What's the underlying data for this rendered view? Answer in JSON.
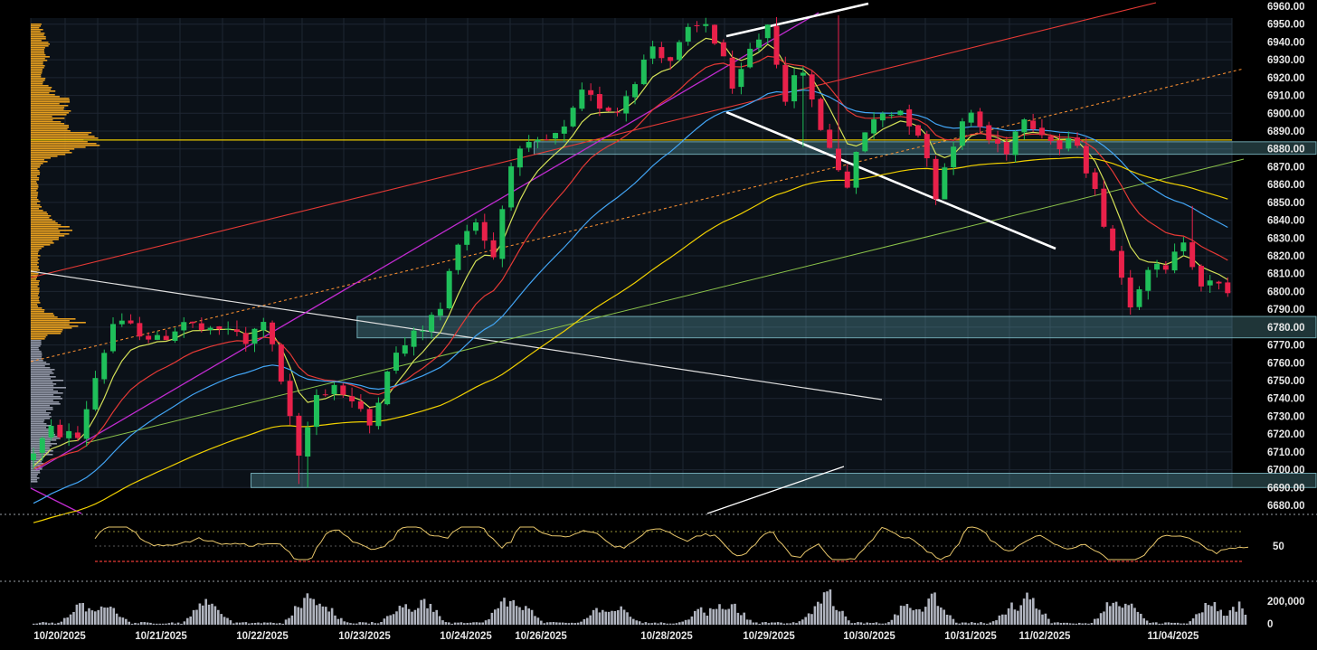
{
  "chart_data": {
    "type": "candlestick",
    "x_labels": [
      "10/20/2025",
      "10/21/2025",
      "10/22/2025",
      "10/23/2025",
      "10/24/2025",
      "10/26/2025",
      "10/28/2025",
      "10/29/2025",
      "10/30/2025",
      "10/31/2025",
      "11/02/2025",
      "11/04/2025"
    ],
    "price_axis": {
      "ticks": [
        "6960.00",
        "6950.00",
        "6940.00",
        "6930.00",
        "6920.00",
        "6910.00",
        "6900.00",
        "6890.00",
        "6880.00",
        "6870.00",
        "6860.00",
        "6850.00",
        "6840.00",
        "6830.00",
        "6820.00",
        "6810.00",
        "6800.00",
        "6790.00",
        "6780.00",
        "6770.00",
        "6760.00",
        "6750.00",
        "6740.00",
        "6730.00",
        "6720.00",
        "6710.00",
        "6700.00",
        "6690.00",
        "6680.00"
      ],
      "ylim": [
        6680,
        6960
      ]
    },
    "rsi_axis": {
      "ticks": [
        "50"
      ],
      "levels": [
        70,
        50,
        30
      ]
    },
    "volume_axis": {
      "ticks": [
        "200,000",
        "0"
      ]
    },
    "price_path": [
      [
        0,
        6705
      ],
      [
        3,
        6722
      ],
      [
        6,
        6718
      ],
      [
        8,
        6752
      ],
      [
        10,
        6782
      ],
      [
        13,
        6778
      ],
      [
        15,
        6772
      ],
      [
        18,
        6783
      ],
      [
        21,
        6776
      ],
      [
        23,
        6780
      ],
      [
        25,
        6770
      ],
      [
        27,
        6785
      ],
      [
        29,
        6750
      ],
      [
        31,
        6705
      ],
      [
        33,
        6742
      ],
      [
        35,
        6748
      ],
      [
        37,
        6738
      ],
      [
        39,
        6725
      ],
      [
        41,
        6758
      ],
      [
        43,
        6770
      ],
      [
        45,
        6780
      ],
      [
        47,
        6790
      ],
      [
        49,
        6830
      ],
      [
        51,
        6840
      ],
      [
        53,
        6820
      ],
      [
        55,
        6874
      ],
      [
        57,
        6880
      ],
      [
        59,
        6884
      ],
      [
        61,
        6890
      ],
      [
        63,
        6910
      ],
      [
        65,
        6905
      ],
      [
        67,
        6902
      ],
      [
        69,
        6920
      ],
      [
        71,
        6938
      ],
      [
        73,
        6930
      ],
      [
        75,
        6945
      ],
      [
        77,
        6950
      ],
      [
        79,
        6932
      ],
      [
        80,
        6910
      ],
      [
        82,
        6935
      ],
      [
        84,
        6950
      ],
      [
        86,
        6910
      ],
      [
        88,
        6925
      ],
      [
        89,
        6905
      ],
      [
        91,
        6880
      ],
      [
        93,
        6860
      ],
      [
        95,
        6890
      ],
      [
        97,
        6900
      ],
      [
        99,
        6902
      ],
      [
        101,
        6890
      ],
      [
        103,
        6855
      ],
      [
        105,
        6885
      ],
      [
        107,
        6900
      ],
      [
        109,
        6885
      ],
      [
        111,
        6880
      ],
      [
        113,
        6900
      ],
      [
        115,
        6890
      ],
      [
        117,
        6880
      ],
      [
        119,
        6885
      ],
      [
        120,
        6870
      ],
      [
        122,
        6840
      ],
      [
        124,
        6808
      ],
      [
        125,
        6795
      ],
      [
        127,
        6815
      ],
      [
        129,
        6810
      ],
      [
        131,
        6830
      ],
      [
        133,
        6805
      ],
      [
        135,
        6802
      ]
    ],
    "moving_averages": [
      {
        "color": "#d4e157",
        "lag": 3
      },
      {
        "color": "#e53935",
        "lag": 7
      },
      {
        "color": "#42a5f5",
        "lag": 14
      },
      {
        "color": "#f0d000",
        "lag": 34
      }
    ],
    "levels": [
      {
        "price": 6885,
        "color": "#e8c800"
      }
    ],
    "zones": [
      {
        "from": 6884,
        "to": 6877,
        "start": 57
      },
      {
        "from": 6786,
        "to": 6774,
        "start": 37
      },
      {
        "from": 6698,
        "to": 6690,
        "start": 25
      }
    ],
    "colors": {
      "up": "#1fbf5a",
      "down": "#e8214a",
      "profile_upper": "#f0a51f",
      "profile_lower": "#9a9fae",
      "volume": "#b0b4bf",
      "rsi": "#e9c76b"
    }
  }
}
